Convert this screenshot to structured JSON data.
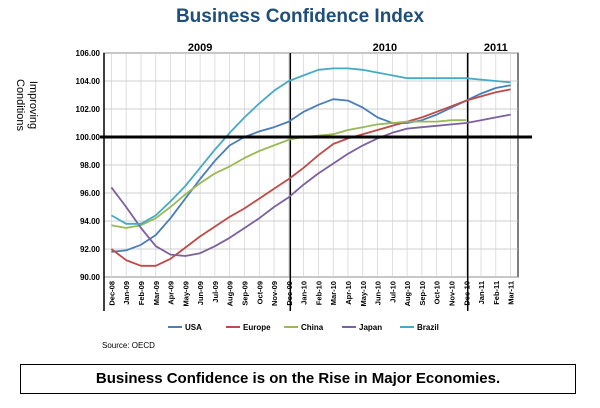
{
  "title": "Business Confidence Index",
  "caption": "Business Confidence is on the Rise in Major Economies.",
  "source": "Source: OECD",
  "chart_data": {
    "type": "line",
    "ylabel_lines": [
      "Improving",
      "Conditions"
    ],
    "ylim": [
      90,
      106
    ],
    "yticks": [
      90,
      92,
      94,
      96,
      98,
      100,
      102,
      104,
      106
    ],
    "ytick_labels": [
      "90.00",
      "92.00",
      "94.00",
      "96.00",
      "98.00",
      "100.00",
      "102.00",
      "104.00",
      "106.00"
    ],
    "reference_line": 100,
    "categories": [
      "Dec-08",
      "Jan-09",
      "Feb-09",
      "Mar-09",
      "Apr-09",
      "May-09",
      "Jun-09",
      "Jul-09",
      "Aug-09",
      "Sep-09",
      "Oct-09",
      "Nov-09",
      "Dec-09",
      "Jan-10",
      "Feb-10",
      "Mar-10",
      "Apr-10",
      "May-10",
      "Jun-10",
      "Jul-10",
      "Aug-10",
      "Sep-10",
      "Oct-10",
      "Nov-10",
      "Dec-10",
      "Jan-11",
      "Feb-11",
      "Mar-11"
    ],
    "year_labels": [
      {
        "label": "2009",
        "start": 0,
        "end": 13
      },
      {
        "label": "2010",
        "start": 13,
        "end": 25
      },
      {
        "label": "2011",
        "start": 25,
        "end": 28
      }
    ],
    "year_dividers": [
      0,
      12.6,
      24.6
    ],
    "series": [
      {
        "name": "USA",
        "color": "#4a7ebb",
        "values": [
          91.8,
          91.9,
          92.3,
          93.0,
          94.2,
          95.6,
          97.0,
          98.3,
          99.4,
          100.0,
          100.4,
          100.7,
          101.1,
          101.8,
          102.3,
          102.7,
          102.6,
          102.1,
          101.4,
          101.0,
          101.0,
          101.2,
          101.6,
          102.1,
          102.6,
          103.1,
          103.5,
          103.7
        ]
      },
      {
        "name": "Europe",
        "color": "#be4b48",
        "values": [
          92.0,
          91.2,
          90.8,
          90.8,
          91.3,
          92.1,
          92.9,
          93.6,
          94.3,
          94.9,
          95.6,
          96.3,
          97.0,
          97.8,
          98.7,
          99.5,
          99.9,
          100.2,
          100.5,
          100.8,
          101.1,
          101.4,
          101.8,
          102.2,
          102.6,
          102.9,
          103.2,
          103.4
        ]
      },
      {
        "name": "China",
        "color": "#98b954",
        "values": [
          93.7,
          93.5,
          93.7,
          94.2,
          95.0,
          95.9,
          96.7,
          97.4,
          97.9,
          98.5,
          99.0,
          99.4,
          99.8,
          100.0,
          100.1,
          100.2,
          100.5,
          100.7,
          100.9,
          101.0,
          101.1,
          101.1,
          101.1,
          101.2,
          101.2,
          null,
          null,
          null
        ]
      },
      {
        "name": "Japan",
        "color": "#7d60a0",
        "values": [
          96.4,
          95.0,
          93.5,
          92.2,
          91.6,
          91.5,
          91.7,
          92.2,
          92.8,
          93.5,
          94.2,
          95.0,
          95.7,
          96.6,
          97.4,
          98.1,
          98.8,
          99.4,
          99.9,
          100.3,
          100.6,
          100.7,
          100.8,
          100.9,
          101.0,
          101.2,
          101.4,
          101.6
        ]
      },
      {
        "name": "Brazil",
        "color": "#46aac5",
        "values": [
          94.4,
          93.8,
          93.8,
          94.4,
          95.4,
          96.5,
          97.8,
          99.1,
          100.3,
          101.4,
          102.4,
          103.3,
          104.0,
          104.4,
          104.8,
          104.9,
          104.9,
          104.8,
          104.6,
          104.4,
          104.2,
          104.2,
          104.2,
          104.2,
          104.2,
          104.1,
          104.0,
          103.9
        ]
      }
    ]
  }
}
